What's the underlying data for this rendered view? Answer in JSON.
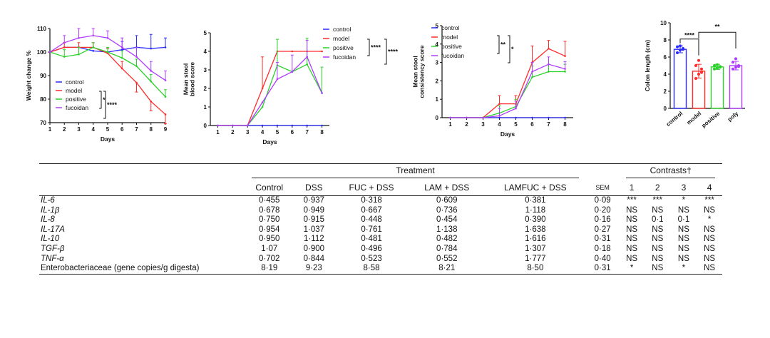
{
  "colors": {
    "control": "#2b2bff",
    "model": "#ff2a2a",
    "positive": "#2bd12b",
    "fucoidan": "#b03bff"
  },
  "chart_data": [
    {
      "type": "line",
      "id": "weight",
      "ylabel": "Weight change %",
      "xlabel": "Days",
      "x": [
        1,
        2,
        3,
        4,
        5,
        6,
        7,
        8,
        9
      ],
      "xticks": [
        "1",
        "2",
        "3",
        "4",
        "5",
        "6",
        "7",
        "8",
        "9"
      ],
      "ylim": [
        70,
        110
      ],
      "yticks": [
        "70",
        "80",
        "90",
        "100",
        "110"
      ],
      "legend": [
        "control",
        "model",
        "positive",
        "fucoidan"
      ],
      "significance": [
        "*",
        "****"
      ],
      "series": [
        {
          "name": "control",
          "values": [
            100,
            102,
            102,
            100.5,
            100,
            101,
            102,
            101.5,
            102
          ],
          "err": [
            0,
            0,
            0,
            0,
            1.5,
            3.5,
            5,
            6,
            4
          ]
        },
        {
          "name": "model",
          "values": [
            100,
            102,
            102,
            102,
            99.5,
            93,
            87,
            79,
            73.5
          ],
          "err": [
            0,
            2,
            2,
            2,
            2,
            3,
            4,
            4,
            4
          ]
        },
        {
          "name": "positive",
          "values": [
            100,
            98,
            99,
            102,
            100,
            97.5,
            94,
            87.5,
            81
          ],
          "err": [
            0,
            3,
            3,
            2,
            2,
            3,
            3,
            3,
            3
          ]
        },
        {
          "name": "fucoidan",
          "values": [
            100,
            104,
            106,
            107,
            106,
            102,
            98,
            92,
            88
          ],
          "err": [
            0,
            3,
            4,
            3,
            3,
            4,
            4,
            4,
            4
          ]
        }
      ]
    },
    {
      "type": "line",
      "id": "blood",
      "ylabel": "Mean stool blood score",
      "xlabel": "Days",
      "x": [
        1,
        2,
        3,
        4,
        5,
        6,
        7,
        8
      ],
      "xticks": [
        "1",
        "2",
        "3",
        "4",
        "5",
        "6",
        "7",
        "8"
      ],
      "ylim": [
        0,
        5
      ],
      "yticks": [
        "0",
        "1",
        "2",
        "3",
        "4",
        "5"
      ],
      "legend": [
        "control",
        "model",
        "positive",
        "fucoidan"
      ],
      "significance": [
        "****",
        "****"
      ],
      "series": [
        {
          "name": "control",
          "values": [
            0,
            0,
            0,
            0,
            0,
            0,
            0,
            0
          ],
          "err": [
            0,
            0,
            0,
            0,
            0,
            0,
            0,
            0
          ]
        },
        {
          "name": "model",
          "values": [
            0,
            0,
            0,
            2,
            4,
            4,
            4,
            4
          ],
          "err": [
            0,
            0,
            0,
            1.7,
            0,
            0,
            0,
            0
          ]
        },
        {
          "name": "positive",
          "values": [
            0,
            0,
            0,
            1,
            3.25,
            2.9,
            3.3,
            1.75
          ],
          "err": [
            0,
            0,
            0,
            0,
            1.4,
            0,
            1.4,
            1.4
          ]
        },
        {
          "name": "fucoidan",
          "values": [
            0,
            0,
            0,
            1.25,
            2.5,
            2.9,
            3.7,
            1.75
          ],
          "err": [
            0,
            0,
            0,
            0,
            0.9,
            0.9,
            0.9,
            0
          ]
        }
      ]
    },
    {
      "type": "line",
      "id": "consistency",
      "ylabel": "Mean stool consistency score",
      "xlabel": "Days",
      "x": [
        1,
        2,
        3,
        4,
        5,
        6,
        7,
        8
      ],
      "xticks": [
        "1",
        "2",
        "3",
        "4",
        "5",
        "6",
        "7",
        "8"
      ],
      "ylim": [
        0,
        5
      ],
      "yticks": [
        "0",
        "1",
        "2",
        "3",
        "4",
        "5"
      ],
      "legend": [
        "control",
        "model",
        "positive",
        "fucoidan"
      ],
      "significance": [
        "**",
        "*"
      ],
      "series": [
        {
          "name": "control",
          "values": [
            0,
            0,
            0,
            0,
            0,
            0,
            0,
            0
          ],
          "err": [
            0,
            0,
            0,
            0,
            0,
            0,
            0,
            0
          ]
        },
        {
          "name": "model",
          "values": [
            0,
            0,
            0,
            0.75,
            0.75,
            3.0,
            3.75,
            3.35
          ],
          "err": [
            0,
            0,
            0,
            0.45,
            0.45,
            0.9,
            0.45,
            0.8
          ]
        },
        {
          "name": "positive",
          "values": [
            0,
            0,
            0,
            0.25,
            0.6,
            2.2,
            2.5,
            2.5
          ],
          "err": [
            0,
            0,
            0,
            0.4,
            0.4,
            0.6,
            0.4,
            0.4
          ]
        },
        {
          "name": "fucoidan",
          "values": [
            0,
            0,
            0,
            0.1,
            0.5,
            2.5,
            2.9,
            2.65
          ],
          "err": [
            0,
            0,
            0,
            0.4,
            0.4,
            0.5,
            0.4,
            0.4
          ]
        }
      ]
    },
    {
      "type": "bar",
      "id": "colon",
      "ylabel": "Colon length (cm)",
      "categories": [
        "control",
        "model",
        "positive",
        "poly"
      ],
      "values": [
        6.9,
        4.35,
        4.85,
        5.0
      ],
      "err": [
        0.4,
        0.8,
        0.3,
        0.5
      ],
      "points": [
        [
          6.5,
          6.8,
          7.0,
          7.2,
          7.3,
          6.9
        ],
        [
          3.5,
          4.0,
          4.6,
          5.0,
          5.6,
          4.2
        ],
        [
          4.6,
          4.7,
          4.9,
          5.0,
          5.1,
          4.8
        ],
        [
          4.6,
          4.8,
          5.0,
          5.4,
          5.8,
          4.9
        ]
      ],
      "ylim": [
        0,
        10
      ],
      "yticks": [
        "0",
        "2",
        "4",
        "6",
        "8",
        "10"
      ],
      "significance": [
        "****",
        "**"
      ]
    }
  ],
  "table": {
    "group_treatment": "Treatment",
    "group_contrasts": "Contrasts†",
    "columns": [
      "Control",
      "DSS",
      "FUC + DSS",
      "LAM + DSS",
      "LAMFUC + DSS",
      "SEM",
      "1",
      "2",
      "3",
      "4"
    ],
    "rows": [
      {
        "label": "IL-6",
        "italic": true,
        "values": [
          "0·455",
          "0·937",
          "0·318",
          "0·609",
          "0·381",
          "0·09",
          "***",
          "***",
          "*",
          "***"
        ]
      },
      {
        "label": "IL-1β",
        "italic": true,
        "values": [
          "0·678",
          "0·949",
          "0·667",
          "0·736",
          "1·118",
          "0·20",
          "NS",
          "NS",
          "NS",
          "NS"
        ]
      },
      {
        "label": "IL-8",
        "italic": true,
        "values": [
          "0·750",
          "0·915",
          "0·448",
          "0·454",
          "0·390",
          "0·16",
          "NS",
          "0·1",
          "0·1",
          "*"
        ]
      },
      {
        "label": "IL-17A",
        "italic": true,
        "values": [
          "0·954",
          "1·037",
          "0·761",
          "1·138",
          "1·638",
          "0·27",
          "NS",
          "NS",
          "NS",
          "NS"
        ]
      },
      {
        "label": "IL-10",
        "italic": true,
        "values": [
          "0·950",
          "1·112",
          "0·481",
          "0·482",
          "1·616",
          "0·31",
          "NS",
          "NS",
          "NS",
          "NS"
        ]
      },
      {
        "label": "TGF-β",
        "italic": true,
        "values": [
          "1·07",
          "0·900",
          "0·496",
          "0·784",
          "1·307",
          "0·18",
          "NS",
          "NS",
          "NS",
          "NS"
        ]
      },
      {
        "label": "TNF-α",
        "italic": true,
        "values": [
          "0·702",
          "0·844",
          "0·523",
          "0·552",
          "1·777",
          "0·40",
          "NS",
          "NS",
          "NS",
          "NS"
        ]
      },
      {
        "label": "Enterobacteriaceae (gene copies/g digesta)",
        "italic": false,
        "values": [
          "8·19",
          "9·23",
          "8·58",
          "8·21",
          "8·50",
          "0·31",
          "*",
          "NS",
          "*",
          "NS"
        ]
      }
    ]
  }
}
